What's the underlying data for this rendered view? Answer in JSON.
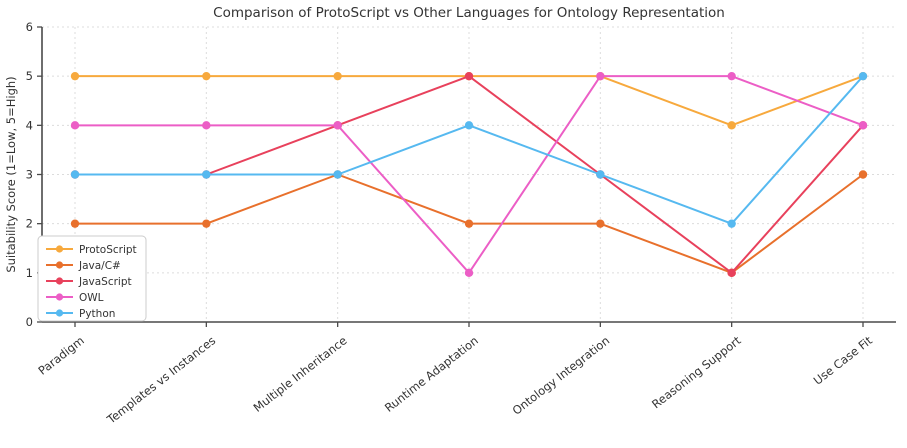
{
  "chart_data": {
    "type": "line",
    "title": "Comparison of ProtoScript vs Other Languages for Ontology Representation",
    "xlabel": "",
    "ylabel": "Suitability Score (1=Low, 5=High)",
    "categories": [
      "Paradigm",
      "Templates vs Instances",
      "Multiple Inheritance",
      "Runtime Adaptation",
      "Ontology Integration",
      "Reasoning Support",
      "Use Case Fit"
    ],
    "yticks": [
      0,
      1,
      2,
      3,
      4,
      5,
      6
    ],
    "ylim": [
      0,
      6
    ],
    "grid": true,
    "grid_style": "dashed",
    "legend_position": "lower left",
    "marker": "circle",
    "series": [
      {
        "name": "ProtoScript",
        "color": "#F7A93D",
        "values": [
          5,
          5,
          5,
          5,
          5,
          4,
          5
        ]
      },
      {
        "name": "Java/C#",
        "color": "#E8702C",
        "values": [
          2,
          2,
          3,
          2,
          2,
          1,
          3
        ]
      },
      {
        "name": "JavaScript",
        "color": "#E8415C",
        "values": [
          3,
          3,
          4,
          5,
          3,
          1,
          4
        ]
      },
      {
        "name": "OWL",
        "color": "#EC5EC6",
        "values": [
          4,
          4,
          4,
          1,
          5,
          5,
          4
        ]
      },
      {
        "name": "Python",
        "color": "#56B9F0",
        "values": [
          3,
          3,
          3,
          4,
          3,
          2,
          5
        ]
      }
    ],
    "style": {
      "grid_color": "#DCDCDC",
      "spine_color": "#4A4A4A",
      "text_color": "#333333",
      "legend_border_color": "#CCCCCC",
      "background": "#FFFFFF"
    }
  }
}
